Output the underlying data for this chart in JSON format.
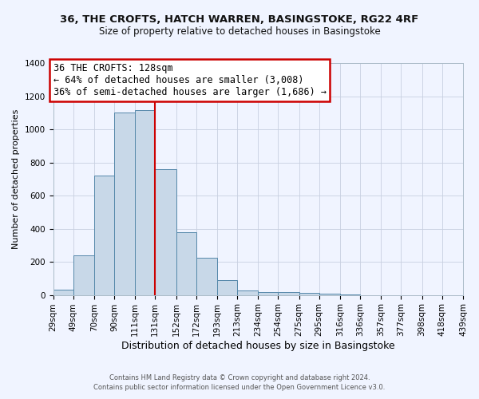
{
  "title1": "36, THE CROFTS, HATCH WARREN, BASINGSTOKE, RG22 4RF",
  "title2": "Size of property relative to detached houses in Basingstoke",
  "xlabel": "Distribution of detached houses by size in Basingstoke",
  "ylabel": "Number of detached properties",
  "bin_labels": [
    "29sqm",
    "49sqm",
    "70sqm",
    "90sqm",
    "111sqm",
    "131sqm",
    "152sqm",
    "172sqm",
    "193sqm",
    "213sqm",
    "234sqm",
    "254sqm",
    "275sqm",
    "295sqm",
    "316sqm",
    "336sqm",
    "357sqm",
    "377sqm",
    "398sqm",
    "418sqm",
    "439sqm"
  ],
  "bar_values": [
    30,
    238,
    722,
    1100,
    1115,
    760,
    378,
    225,
    90,
    28,
    18,
    15,
    12,
    7,
    2,
    0,
    0,
    0,
    0,
    0
  ],
  "bar_color": "#c8d8e8",
  "bar_edge_color": "#5588aa",
  "bin_edges": [
    29,
    49,
    70,
    90,
    111,
    131,
    152,
    172,
    193,
    213,
    234,
    254,
    275,
    295,
    316,
    336,
    357,
    377,
    398,
    418,
    439
  ],
  "ylim": [
    0,
    1400
  ],
  "yticks": [
    0,
    200,
    400,
    600,
    800,
    1000,
    1200,
    1400
  ],
  "vline_x": 131,
  "vline_color": "#cc0000",
  "annotation_title": "36 THE CROFTS: 128sqm",
  "annotation_line1": "← 64% of detached houses are smaller (3,008)",
  "annotation_line2": "36% of semi-detached houses are larger (1,686) →",
  "annotation_box_color": "#ffffff",
  "annotation_box_edge": "#cc0000",
  "footer1": "Contains HM Land Registry data © Crown copyright and database right 2024.",
  "footer2": "Contains public sector information licensed under the Open Government Licence v3.0.",
  "bg_color": "#f0f4ff",
  "title_fontsize": 9.5,
  "subtitle_fontsize": 8.5,
  "ylabel_fontsize": 8,
  "xlabel_fontsize": 9,
  "tick_fontsize": 7.5,
  "ann_fontsize": 8.5,
  "footer_fontsize": 6
}
